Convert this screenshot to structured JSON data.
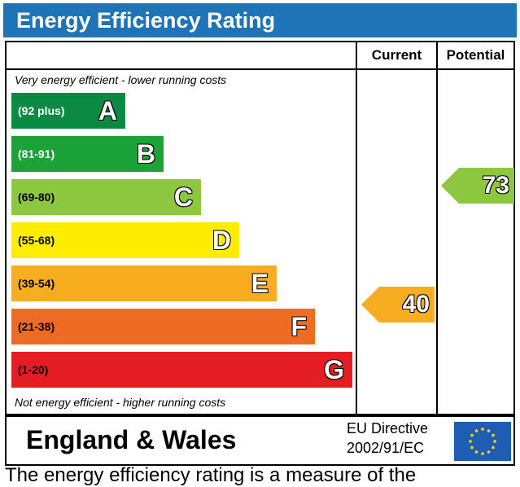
{
  "title": "Energy Efficiency Rating",
  "columns": {
    "current": "Current",
    "potential": "Potential"
  },
  "captions": {
    "top": "Very energy efficient - lower running costs",
    "bottom": "Not energy efficient - higher running costs"
  },
  "colors": {
    "title_bg": "#1f73b7",
    "A": "#0a8a43",
    "B": "#1ba33a",
    "C": "#8dc63f",
    "D": "#ffed00",
    "E": "#f7ad1f",
    "F": "#ef6a23",
    "G": "#e31d23",
    "current_arrow": "#f7ad1f",
    "potential_arrow": "#8dc63f",
    "eu_flag": "#1f5cb4",
    "eu_star": "#ffdd00"
  },
  "chart_data": {
    "type": "bar",
    "title": "Energy Efficiency Rating",
    "bands": [
      {
        "letter": "A",
        "range": "(92 plus)"
      },
      {
        "letter": "B",
        "range": "(81-91)"
      },
      {
        "letter": "C",
        "range": "(69-80)"
      },
      {
        "letter": "D",
        "range": "(55-68)"
      },
      {
        "letter": "E",
        "range": "(39-54)"
      },
      {
        "letter": "F",
        "range": "(21-38)"
      },
      {
        "letter": "G",
        "range": "(1-20)"
      }
    ],
    "current": {
      "value": 40,
      "band": "E"
    },
    "potential": {
      "value": 73,
      "band": "C"
    }
  },
  "footer": {
    "region": "England & Wales",
    "directive_line1": "EU Directive",
    "directive_line2": "2002/91/EC"
  },
  "footnote": "The energy efficiency rating is a measure of the"
}
